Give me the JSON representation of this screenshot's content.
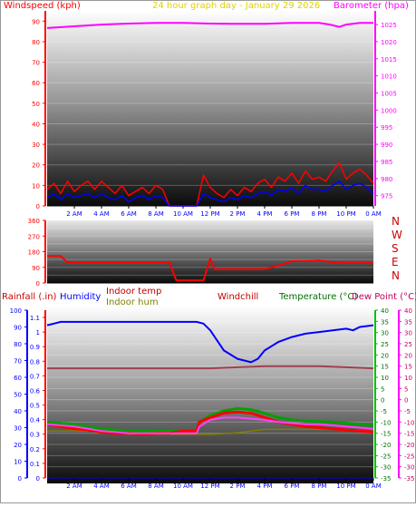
{
  "header": {
    "windspeed_label": "Windspeed (kph)",
    "title": "24 hour graph day - January 29 2026",
    "barometer_label": "Barometer (hpa)"
  },
  "colors": {
    "windspeed": "#ff0000",
    "gust": "#ff0000",
    "wind_avg": "#0000ff",
    "barometer": "#ff00ff",
    "title": "#e0d000",
    "direction": "#ff0000",
    "compass": "#d00000",
    "rainfall": "#d00000",
    "humidity": "#0000ff",
    "indoor_temp": "#c00000",
    "indoor_hum": "#808000",
    "windchill": "#c00000",
    "temperature": "#007000",
    "dewpoint": "#c00060"
  },
  "bottom_header": {
    "rainfall_label": "Rainfall (.in)",
    "humidity_label": "Humidity",
    "indoor_temp_label": "Indoor temp",
    "indoor_hum_label": "Indoor hum",
    "windchill_label": "Windchill",
    "temperature_label": "Temperature (°C)",
    "dewpoint_label": "Dew Point (°C)"
  },
  "compass_labels": [
    "N",
    "W",
    "S",
    "E",
    "N"
  ],
  "chart_data": [
    {
      "type": "line",
      "title": "24 hour graph day - January 29 2026",
      "x_ticks": [
        "2 AM",
        "4 AM",
        "6 AM",
        "8 AM",
        "10 AM",
        "12 PM",
        "2 PM",
        "4 PM",
        "6 PM",
        "8 PM",
        "10 PM",
        "0 AM"
      ],
      "left_axis": {
        "label": "Windspeed (kph)",
        "ticks": [
          0,
          10,
          20,
          30,
          40,
          50,
          60,
          70,
          80,
          90
        ],
        "range": [
          0,
          95
        ]
      },
      "right_axis": {
        "label": "Barometer (hpa)",
        "ticks": [
          975,
          980,
          985,
          990,
          995,
          1000,
          1005,
          1010,
          1015,
          1020,
          1025
        ],
        "range": [
          972,
          1029
        ]
      },
      "series": [
        {
          "name": "Barometer (hpa)",
          "axis": "right",
          "x": [
            0,
            2,
            4,
            6,
            8,
            10,
            12,
            14,
            16,
            18,
            20,
            20.8,
            21.5,
            22,
            23,
            24
          ],
          "values": [
            1024,
            1024.5,
            1025,
            1025.3,
            1025.5,
            1025.5,
            1025.3,
            1025.2,
            1025.2,
            1025.5,
            1025.5,
            1025,
            1024.3,
            1025,
            1025.5,
            1025.5
          ]
        },
        {
          "axis": "left",
          "x": [
            0,
            0.5,
            1,
            1.5,
            2,
            2.5,
            3,
            3.5,
            4,
            4.5,
            5,
            5.5,
            6,
            6.5,
            7,
            7.5,
            8,
            8.5,
            9,
            9.5,
            10,
            10.5,
            11,
            11.5,
            12,
            12.5,
            13,
            13.5,
            14,
            14.5,
            15,
            15.5,
            16,
            16.5,
            17,
            17.5,
            18,
            18.5,
            19,
            19.5,
            20,
            20.5,
            21,
            21.5,
            22,
            22.5,
            23,
            23.5,
            24
          ],
          "values": [
            8,
            11,
            6,
            12,
            7,
            10,
            12,
            8,
            12,
            9,
            6,
            10,
            5,
            7,
            9,
            6,
            10,
            8,
            0,
            0,
            0,
            0,
            0,
            15,
            9,
            6,
            4,
            8,
            5,
            9,
            7,
            11,
            13,
            9,
            14,
            12,
            16,
            11,
            17,
            13,
            14,
            12,
            17,
            21,
            13,
            16,
            18,
            15,
            11
          ]
        },
        {
          "axis": "left",
          "x": [
            0,
            0.5,
            1,
            1.5,
            2,
            2.5,
            3,
            3.5,
            4,
            4.5,
            5,
            5.5,
            6,
            6.5,
            7,
            7.5,
            8,
            8.5,
            9,
            9.5,
            10,
            10.5,
            11,
            11.5,
            12,
            12.5,
            13,
            13.5,
            14,
            14.5,
            15,
            15.5,
            16,
            16.5,
            17,
            17.5,
            18,
            18.5,
            19,
            19.5,
            20,
            20.5,
            21,
            21.5,
            22,
            22.5,
            23,
            23.5,
            24
          ],
          "values": [
            4,
            6,
            3,
            6,
            4,
            5,
            6,
            4,
            6,
            4,
            3,
            5,
            2,
            4,
            5,
            3,
            5,
            4,
            0,
            0,
            0,
            0,
            0,
            6,
            4,
            3,
            2,
            4,
            3,
            5,
            4,
            6,
            7,
            5,
            8,
            7,
            9,
            6,
            10,
            8,
            8,
            7,
            10,
            12,
            8,
            10,
            11,
            9,
            6
          ]
        }
      ]
    },
    {
      "type": "line",
      "left_axis": {
        "ticks": [
          0,
          45,
          90,
          135,
          180,
          225,
          270,
          315,
          360
        ],
        "range": [
          0,
          360
        ]
      },
      "x_ticks": [],
      "series": [
        {
          "name": "Wind direction",
          "x": [
            0,
            1,
            1.5,
            4,
            7,
            9,
            9.5,
            10,
            11.5,
            12,
            12.3,
            13,
            14,
            16,
            17,
            18,
            19,
            20,
            21,
            22,
            23,
            24
          ],
          "values": [
            155,
            155,
            118,
            118,
            118,
            118,
            15,
            15,
            15,
            140,
            80,
            80,
            80,
            80,
            100,
            125,
            125,
            130,
            120,
            115,
            115,
            115
          ]
        }
      ]
    },
    {
      "type": "line",
      "x_ticks": [
        "2 AM",
        "4 AM",
        "6 AM",
        "8 AM",
        "10 AM",
        "12 PM",
        "2 PM",
        "4 PM",
        "6 PM",
        "8 PM",
        "10 PM",
        "0 AM"
      ],
      "humidity_axis": {
        "ticks": [
          0,
          10,
          20,
          30,
          40,
          50,
          60,
          70,
          80,
          90,
          100
        ],
        "range": [
          0,
          100
        ]
      },
      "rain_axis": {
        "ticks": [
          0,
          0.1,
          0.2,
          0.3,
          0.4,
          0.5,
          0.6,
          0.7,
          0.8,
          0.9,
          1,
          1.1
        ],
        "range": [
          0,
          1.15
        ]
      },
      "temp_axis": {
        "ticks": [
          -35,
          -30,
          -25,
          -20,
          -15,
          -10,
          -5,
          0,
          5,
          10,
          15,
          20,
          25,
          30,
          35,
          40
        ],
        "range": [
          -35,
          40
        ]
      },
      "dewpoint_axis": {
        "ticks": [
          -35,
          -30,
          -25,
          -20,
          -15,
          -10,
          -5,
          0,
          5,
          10,
          15,
          20,
          25,
          30,
          35,
          40
        ],
        "range": [
          -35,
          40
        ]
      },
      "series": [
        {
          "name": "Humidity",
          "axis": "humidity",
          "x": [
            0,
            0.5,
            1,
            2,
            4,
            6,
            8,
            10,
            11,
            11.5,
            12,
            12.5,
            13,
            14,
            14.5,
            15,
            15.5,
            16,
            17,
            18,
            19,
            20,
            21,
            22,
            22.5,
            23,
            24
          ],
          "values": [
            91,
            92,
            93,
            93,
            93,
            93,
            93,
            93,
            93,
            92,
            88,
            82,
            76,
            71,
            70,
            69,
            71,
            76,
            81,
            84,
            86,
            87,
            88,
            89,
            88,
            90,
            91
          ]
        },
        {
          "name": "Indoor hum",
          "axis": "humidity",
          "x": [
            0,
            2,
            4,
            6,
            8,
            10,
            12,
            14,
            16,
            18,
            20,
            22,
            24
          ],
          "values": [
            28,
            28,
            28,
            26,
            26,
            26,
            26,
            27,
            29,
            29,
            29,
            29,
            28
          ]
        },
        {
          "name": "Indoor temp",
          "axis": "temp",
          "x": [
            0,
            2,
            4,
            6,
            8,
            10,
            12,
            14,
            16,
            18,
            20,
            22,
            24
          ],
          "values": [
            14,
            14,
            14,
            14,
            14,
            14,
            14,
            14.5,
            15,
            15,
            15,
            14.5,
            14
          ]
        },
        {
          "name": "Temperature (°C)",
          "axis": "temp",
          "x": [
            0,
            1,
            2,
            3,
            4,
            5,
            6,
            7,
            8,
            9,
            10,
            11,
            11.2,
            12,
            13,
            14,
            15,
            16,
            17,
            18,
            19,
            20,
            21,
            22,
            23,
            24
          ],
          "values": [
            -10,
            -10.5,
            -11,
            -12,
            -13,
            -13.5,
            -14,
            -14,
            -14,
            -14,
            -14,
            -14,
            -10,
            -7,
            -5,
            -4,
            -4.5,
            -6,
            -8,
            -9,
            -9.5,
            -9.8,
            -10,
            -10.5,
            -11,
            -11.5
          ]
        },
        {
          "name": "Windchill",
          "axis": "temp",
          "x": [
            0,
            1,
            2,
            3,
            4,
            5,
            6,
            7,
            8,
            9,
            10,
            11,
            11.2,
            12,
            13,
            14,
            15,
            16,
            17,
            18,
            19,
            20,
            21,
            22,
            23,
            24
          ],
          "values": [
            -11,
            -12,
            -13,
            -13.5,
            -14.5,
            -15,
            -15,
            -15.5,
            -15,
            -15,
            -14,
            -14,
            -10,
            -8,
            -6,
            -5.5,
            -6,
            -8,
            -10,
            -11,
            -12,
            -12.5,
            -13,
            -13.5,
            -14,
            -14.5
          ]
        },
        {
          "name": "Dew Point (°C)",
          "axis": "temp",
          "x": [
            0,
            1,
            2,
            3,
            4,
            5,
            6,
            7,
            8,
            9,
            10,
            11,
            11.2,
            12,
            13,
            14,
            15,
            16,
            17,
            18,
            19,
            20,
            21,
            22,
            23,
            24
          ],
          "values": [
            -11,
            -11.5,
            -12,
            -13,
            -14,
            -14.5,
            -15,
            -15,
            -15,
            -15,
            -15,
            -15,
            -12,
            -9,
            -8,
            -8,
            -8.5,
            -9,
            -10,
            -10.5,
            -11,
            -11,
            -11.5,
            -12,
            -12.5,
            -13
          ]
        },
        {
          "name": "Rainfall (.in)",
          "axis": "rain",
          "x": [
            0,
            24
          ],
          "values": [
            0,
            0
          ]
        }
      ]
    }
  ]
}
